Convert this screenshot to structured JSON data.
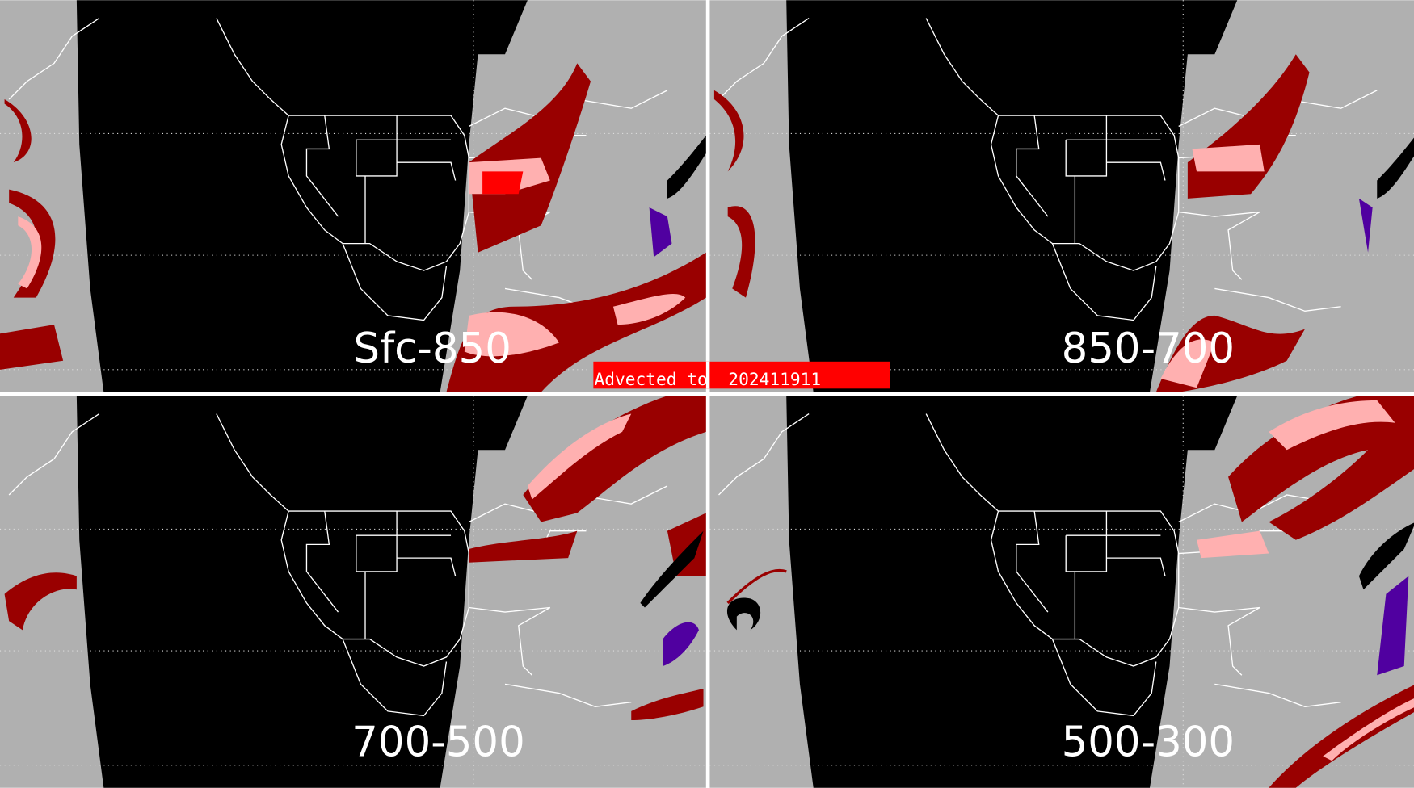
{
  "banner": {
    "text": "Advected to  202411911"
  },
  "panels": [
    {
      "label": "Sfc-850"
    },
    {
      "label": "850-700"
    },
    {
      "label": "700-500"
    },
    {
      "label": "500-300"
    }
  ],
  "colors": {
    "background": "#b0b0b0",
    "space": "#000000",
    "outline": "#ffffff",
    "dark_red": "#990000",
    "red": "#ff0000",
    "pink": "#ffb0b0",
    "purple": "#5000a0",
    "banner": "#ff0000",
    "divider": "#ffffff"
  }
}
